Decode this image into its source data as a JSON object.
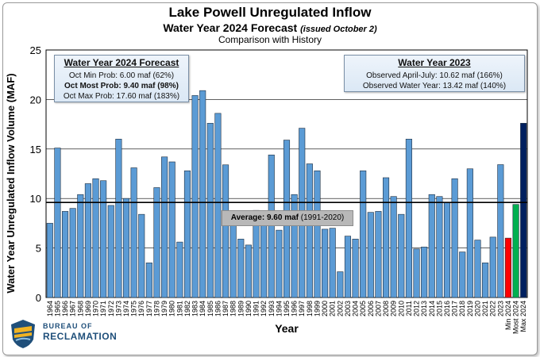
{
  "title": "Lake Powell Unregulated Inflow",
  "subtitle": "Water Year 2024 Forecast",
  "subtitle_note": "(issued October 2)",
  "subtitle2": "Comparison with History",
  "forecast_box": {
    "heading": "Water Year 2024 Forecast",
    "lines": [
      "Oct Min Prob: 6.00 maf (62%)",
      "Oct Most Prob: 9.40 maf (98%)",
      "Oct Max Prob: 17.60 maf (183%)"
    ]
  },
  "wy2023_box": {
    "heading": "Water Year 2023",
    "lines": [
      "Observed April-July: 10.62 maf (166%)",
      "Observed Water Year: 13.42 maf (140%)"
    ]
  },
  "average_label": "Average: 9.60 maf",
  "average_range": "(1991-2020)",
  "logo": {
    "line1": "BUREAU OF",
    "line2": "RECLAMATION"
  },
  "chart_data": {
    "type": "bar",
    "xlabel": "Year",
    "ylabel": "Water Year Unregulated Inflow Volume (MAF)",
    "ylim": [
      0,
      25
    ],
    "yticks": [
      0,
      5,
      10,
      15,
      20,
      25
    ],
    "grid": true,
    "average": 9.6,
    "categories": [
      "1964",
      "1965",
      "1966",
      "1967",
      "1968",
      "1969",
      "1970",
      "1971",
      "1972",
      "1973",
      "1974",
      "1975",
      "1976",
      "1977",
      "1978",
      "1979",
      "1980",
      "1981",
      "1982",
      "1983",
      "1984",
      "1985",
      "1986",
      "1987",
      "1988",
      "1989",
      "1990",
      "1991",
      "1992",
      "1993",
      "1994",
      "1995",
      "1996",
      "1997",
      "1998",
      "1999",
      "2000",
      "2001",
      "2002",
      "2003",
      "2004",
      "2005",
      "2006",
      "2007",
      "2008",
      "2009",
      "2010",
      "2011",
      "2012",
      "2013",
      "2014",
      "2015",
      "2016",
      "2017",
      "2018",
      "2019",
      "2020",
      "2021",
      "2022",
      "2023",
      "Min 2024",
      "Most 2024",
      "Max 2024"
    ],
    "values": [
      7.5,
      15.1,
      8.7,
      9.0,
      10.4,
      11.5,
      12.0,
      11.8,
      9.3,
      16.0,
      10.0,
      13.1,
      8.4,
      3.5,
      11.1,
      14.2,
      13.7,
      5.6,
      12.8,
      20.4,
      20.9,
      17.6,
      18.6,
      13.4,
      7.3,
      5.9,
      5.3,
      8.8,
      7.5,
      14.4,
      6.8,
      15.9,
      10.4,
      17.1,
      13.5,
      12.8,
      6.9,
      7.0,
      2.6,
      6.2,
      5.9,
      12.8,
      8.6,
      8.7,
      12.1,
      10.2,
      8.4,
      16.0,
      4.9,
      5.1,
      10.4,
      10.2,
      9.6,
      12.0,
      4.6,
      13.0,
      5.8,
      3.5,
      6.1,
      13.42,
      6.0,
      9.4,
      17.6
    ],
    "bar_colors": {
      "historical": "#5b9bd5",
      "min_2024": "#ff0000",
      "most_2024": "#00b050",
      "max_2024": "#002060"
    }
  }
}
